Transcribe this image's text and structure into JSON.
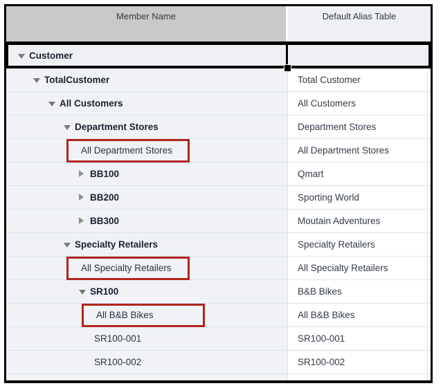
{
  "table": {
    "columns": [
      {
        "label": "Member Name"
      },
      {
        "label": "Default Alias Table"
      }
    ],
    "rows": [
      {
        "member": "Customer",
        "alias": "",
        "level": 0,
        "state": "expanded",
        "bold": true,
        "selected": true,
        "highlight": false
      },
      {
        "member": "TotalCustomer",
        "alias": "Total Customer",
        "level": 1,
        "state": "expanded",
        "bold": true,
        "selected": false,
        "highlight": false
      },
      {
        "member": "All Customers",
        "alias": "All Customers",
        "level": 2,
        "state": "expanded",
        "bold": true,
        "selected": false,
        "highlight": false
      },
      {
        "member": "Department Stores",
        "alias": "Department Stores",
        "level": 3,
        "state": "expanded",
        "bold": true,
        "selected": false,
        "highlight": false
      },
      {
        "member": "All Department Stores",
        "alias": "All Department Stores",
        "level": 4,
        "state": "leaf",
        "bold": false,
        "selected": false,
        "highlight": true
      },
      {
        "member": "BB100",
        "alias": "Qmart",
        "level": 4,
        "state": "collapsed",
        "bold": true,
        "selected": false,
        "highlight": false
      },
      {
        "member": "BB200",
        "alias": "Sporting World",
        "level": 4,
        "state": "collapsed",
        "bold": true,
        "selected": false,
        "highlight": false
      },
      {
        "member": "BB300",
        "alias": "Moutain Adventures",
        "level": 4,
        "state": "collapsed",
        "bold": true,
        "selected": false,
        "highlight": false
      },
      {
        "member": "Specialty Retailers",
        "alias": "Specialty Retailers",
        "level": 3,
        "state": "expanded",
        "bold": true,
        "selected": false,
        "highlight": false
      },
      {
        "member": "All Specialty Retailers",
        "alias": "All Specialty Retailers",
        "level": 4,
        "state": "leaf",
        "bold": false,
        "selected": false,
        "highlight": true
      },
      {
        "member": "SR100",
        "alias": "B&B Bikes",
        "level": 4,
        "state": "expanded",
        "bold": true,
        "selected": false,
        "highlight": false
      },
      {
        "member": "All B&B Bikes",
        "alias": "All B&B Bikes",
        "level": 5,
        "state": "leaf",
        "bold": false,
        "selected": false,
        "highlight": true
      },
      {
        "member": "SR100-001",
        "alias": "SR100-001",
        "level": 5,
        "state": "leaf",
        "bold": false,
        "selected": false,
        "highlight": false
      },
      {
        "member": "SR100-002",
        "alias": "SR100-002",
        "level": 5,
        "state": "leaf",
        "bold": false,
        "selected": false,
        "highlight": false
      }
    ],
    "colors": {
      "highlight_border": "#b2251c",
      "header_member_bg": "#c9c9c9",
      "header_alias_bg": "#eef0f3",
      "member_cell_bg": "#f0f2f6",
      "gridline": "#dde3ec",
      "selection": "#000000"
    }
  }
}
